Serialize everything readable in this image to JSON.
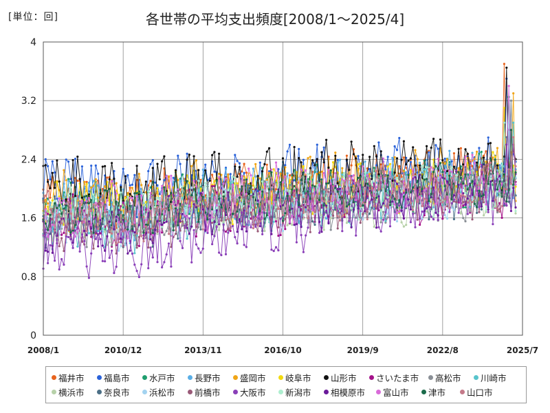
{
  "unit_label": "[単位：回]",
  "chart_data": {
    "type": "line",
    "title": "各世帯の平均支出頻度[2008/1～2025/4]",
    "xlabel": "",
    "ylabel": "",
    "ylim": [
      0,
      4
    ],
    "yticks": [
      "0",
      "0.8",
      "1.6",
      "2.4",
      "3.2",
      "4"
    ],
    "xlim": [
      "2008/1",
      "2025/7"
    ],
    "xticks": [
      "2008/1",
      "2010/12",
      "2013/11",
      "2016/10",
      "2019/9",
      "2022/8",
      "2025/7"
    ],
    "grid": true,
    "legend_position": "bottom",
    "x_start": "2008/1",
    "x_frequency": "monthly",
    "series_overview": "Each series is a monthly value from 2008/1 to 2025/4 (208 points). Values are read as approximate envelopes: about 1.8–2.0 on average in 2008–2012 (range 0.5–2.9), about 1.7–2.0 in 2013–2016, rising to about 2.0–2.3 in 2017–2022 and about 2.2–2.6 in 2023–2025. Peak of about 3.7 near 2024/11 (福井市).",
    "series": [
      {
        "name": "福井市",
        "color": "#e8641e",
        "base": 1.85,
        "trend": 0.4,
        "amp": 0.2,
        "peak": 3.7
      },
      {
        "name": "福島市",
        "color": "#2a62d9",
        "base": 2.05,
        "trend": 0.25,
        "amp": 0.22,
        "peak": 3.5
      },
      {
        "name": "水戸市",
        "color": "#1f9e6e",
        "base": 1.75,
        "trend": 0.4,
        "amp": 0.18,
        "peak": 3.25
      },
      {
        "name": "長野市",
        "color": "#5aaee6",
        "base": 1.7,
        "trend": 0.45,
        "amp": 0.2,
        "peak": 3.2
      },
      {
        "name": "盛岡市",
        "color": "#f0a516",
        "base": 1.85,
        "trend": 0.35,
        "amp": 0.2,
        "peak": 3.3
      },
      {
        "name": "岐阜市",
        "color": "#f2da10",
        "base": 1.75,
        "trend": 0.4,
        "amp": 0.18,
        "peak": 3.1
      },
      {
        "name": "山形市",
        "color": "#111111",
        "base": 2.0,
        "trend": 0.35,
        "amp": 0.22,
        "peak": 3.65
      },
      {
        "name": "さいたま市",
        "color": "#a4128a",
        "base": 1.55,
        "trend": 0.4,
        "amp": 0.18,
        "peak": 2.8
      },
      {
        "name": "高松市",
        "color": "#8a8f96",
        "base": 1.55,
        "trend": 0.45,
        "amp": 0.18,
        "peak": 3.2
      },
      {
        "name": "川崎市",
        "color": "#58c4cc",
        "base": 1.55,
        "trend": 0.45,
        "amp": 0.18,
        "peak": 2.9
      },
      {
        "name": "横浜市",
        "color": "#b7d1a9",
        "base": 1.5,
        "trend": 0.45,
        "amp": 0.16,
        "peak": 2.7
      },
      {
        "name": "奈良市",
        "color": "#4b6f86",
        "base": 1.55,
        "trend": 0.45,
        "amp": 0.16,
        "peak": 2.7
      },
      {
        "name": "浜松市",
        "color": "#a3d3f0",
        "base": 1.55,
        "trend": 0.5,
        "amp": 0.18,
        "peak": 2.9
      },
      {
        "name": "前橋市",
        "color": "#9a5a78",
        "base": 1.45,
        "trend": 0.55,
        "amp": 0.18,
        "peak": 2.8
      },
      {
        "name": "大阪市",
        "color": "#8a3fb8",
        "base": 1.1,
        "trend": 0.85,
        "amp": 0.2,
        "peak": 2.6
      },
      {
        "name": "新潟市",
        "color": "#aeeecf",
        "base": 1.65,
        "trend": 0.4,
        "amp": 0.18,
        "peak": 2.9
      },
      {
        "name": "相模原市",
        "color": "#6a1a9a",
        "base": 1.45,
        "trend": 0.55,
        "amp": 0.16,
        "peak": 2.6
      },
      {
        "name": "富山市",
        "color": "#d96bd9",
        "base": 1.7,
        "trend": 0.45,
        "amp": 0.2,
        "peak": 3.4
      },
      {
        "name": "津市",
        "color": "#1b6b4a",
        "base": 1.65,
        "trend": 0.45,
        "amp": 0.16,
        "peak": 2.8
      },
      {
        "name": "山口市",
        "color": "#c47a8a",
        "base": 1.6,
        "trend": 0.45,
        "amp": 0.16,
        "peak": 2.7
      }
    ]
  }
}
